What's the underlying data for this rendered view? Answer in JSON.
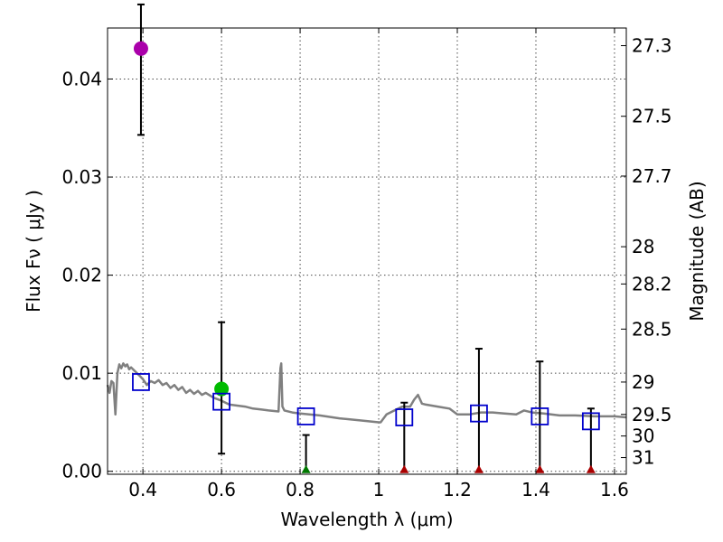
{
  "chart_data": {
    "type": "scatter",
    "xlabel": "Wavelength  λ (μm)",
    "ylabel": "Flux  Fν  ( μJy )",
    "ylabel_right": "Magnitude (AB)",
    "xlim": [
      0.31,
      1.63
    ],
    "ylim": [
      -0.0003,
      0.0452
    ],
    "grid": true,
    "x_ticks": [
      {
        "value": 0.4,
        "label": "0.4"
      },
      {
        "value": 0.6,
        "label": "0.6"
      },
      {
        "value": 0.8,
        "label": "0.8"
      },
      {
        "value": 1.0,
        "label": "1"
      },
      {
        "value": 1.2,
        "label": "1.2"
      },
      {
        "value": 1.4,
        "label": "1.4"
      },
      {
        "value": 1.6,
        "label": "1.6"
      }
    ],
    "y_ticks": [
      {
        "value": 0.0,
        "label": "0.00"
      },
      {
        "value": 0.01,
        "label": "0.01"
      },
      {
        "value": 0.02,
        "label": "0.02"
      },
      {
        "value": 0.03,
        "label": "0.03"
      },
      {
        "value": 0.04,
        "label": "0.04"
      }
    ],
    "mag_ticks": [
      {
        "value": 0.0434,
        "label": "27.3"
      },
      {
        "value": 0.0362,
        "label": "27.5"
      },
      {
        "value": 0.0301,
        "label": "27.7"
      },
      {
        "value": 0.0229,
        "label": "28"
      },
      {
        "value": 0.0191,
        "label": "28.2"
      },
      {
        "value": 0.0145,
        "label": "28.5"
      },
      {
        "value": 0.0091,
        "label": "29"
      },
      {
        "value": 0.0058,
        "label": "29.5"
      },
      {
        "value": 0.0036,
        "label": "30"
      },
      {
        "value": 0.0014,
        "label": "31"
      }
    ],
    "model_spectrum": {
      "name": "SED model",
      "color": "#808080",
      "x": [
        0.31,
        0.315,
        0.32,
        0.325,
        0.33,
        0.335,
        0.34,
        0.345,
        0.35,
        0.355,
        0.36,
        0.365,
        0.37,
        0.38,
        0.39,
        0.4,
        0.41,
        0.42,
        0.43,
        0.44,
        0.45,
        0.46,
        0.47,
        0.48,
        0.49,
        0.5,
        0.51,
        0.52,
        0.53,
        0.54,
        0.55,
        0.56,
        0.58,
        0.6,
        0.62,
        0.64,
        0.66,
        0.68,
        0.7,
        0.72,
        0.745,
        0.75,
        0.752,
        0.755,
        0.76,
        0.78,
        0.8,
        0.85,
        0.9,
        0.95,
        1.0,
        1.005,
        1.02,
        1.04,
        1.06,
        1.08,
        1.09,
        1.1,
        1.11,
        1.12,
        1.15,
        1.18,
        1.2,
        1.23,
        1.26,
        1.29,
        1.32,
        1.35,
        1.37,
        1.39,
        1.42,
        1.46,
        1.5,
        1.55,
        1.6,
        1.63
      ],
      "y": [
        0.0088,
        0.008,
        0.0092,
        0.009,
        0.0058,
        0.01,
        0.0109,
        0.0105,
        0.011,
        0.0107,
        0.0109,
        0.0104,
        0.0106,
        0.0102,
        0.0098,
        0.0094,
        0.0088,
        0.0092,
        0.009,
        0.0093,
        0.0088,
        0.009,
        0.0085,
        0.0088,
        0.0083,
        0.0086,
        0.008,
        0.0083,
        0.0079,
        0.0082,
        0.0078,
        0.008,
        0.0075,
        0.0072,
        0.0068,
        0.0067,
        0.0066,
        0.0064,
        0.0063,
        0.0062,
        0.0061,
        0.0105,
        0.011,
        0.0066,
        0.0062,
        0.006,
        0.0059,
        0.0057,
        0.0054,
        0.0052,
        0.005,
        0.005,
        0.0058,
        0.0062,
        0.0066,
        0.0066,
        0.0073,
        0.0078,
        0.0069,
        0.0068,
        0.0066,
        0.0064,
        0.0058,
        0.0058,
        0.006,
        0.006,
        0.0059,
        0.0058,
        0.0062,
        0.006,
        0.0059,
        0.0057,
        0.0057,
        0.0056,
        0.0056,
        0.0055
      ]
    },
    "model_photometry": {
      "name": "Model bands",
      "color": "#0000cc",
      "x": [
        0.395,
        0.6,
        0.815,
        1.065,
        1.255,
        1.41,
        1.54
      ],
      "y": [
        0.0091,
        0.0071,
        0.0056,
        0.0055,
        0.0059,
        0.0056,
        0.0051
      ]
    },
    "observations": [
      {
        "name": "obs-violet",
        "x": 0.395,
        "y": 0.0431,
        "err_low": 0.0088,
        "err_high": 0.0045,
        "color": "#aa00aa",
        "marker": "circle"
      },
      {
        "name": "obs-green",
        "x": 0.6,
        "y": 0.0084,
        "err_low": 0.0066,
        "err_high": 0.0068,
        "color": "#00bb00",
        "marker": "circle"
      },
      {
        "name": "obs-upper-0.815",
        "x": 0.815,
        "y": 0.0,
        "err_low": 0.0,
        "err_high": 0.0037,
        "color": "#007700",
        "marker": "triangle"
      },
      {
        "name": "obs-upper-1.065",
        "x": 1.065,
        "y": 0.0,
        "err_low": 0.0,
        "err_high": 0.007,
        "color": "#aa0000",
        "marker": "triangle"
      },
      {
        "name": "obs-upper-1.255",
        "x": 1.255,
        "y": 0.0,
        "err_low": 0.0,
        "err_high": 0.0125,
        "color": "#aa0000",
        "marker": "triangle"
      },
      {
        "name": "obs-upper-1.41",
        "x": 1.41,
        "y": 0.0,
        "err_low": 0.0,
        "err_high": 0.0112,
        "color": "#aa0000",
        "marker": "triangle"
      },
      {
        "name": "obs-upper-1.54",
        "x": 1.54,
        "y": 0.0,
        "err_low": 0.0,
        "err_high": 0.0064,
        "color": "#aa0000",
        "marker": "triangle"
      }
    ]
  }
}
